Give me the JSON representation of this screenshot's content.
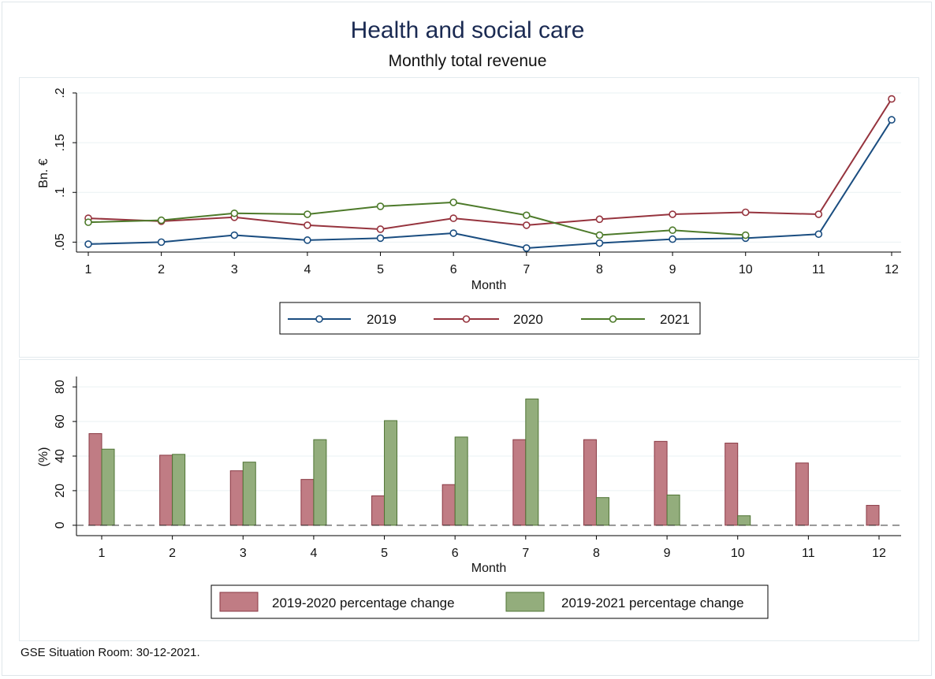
{
  "header": {
    "title": "Health and social care",
    "subtitle": "Monthly total revenue"
  },
  "footer": {
    "note": "GSE Situation Room: 30-12-2021."
  },
  "colors": {
    "s2019": "#1a4d80",
    "s2020": "#96343e",
    "s2021": "#4d7a2a",
    "bar2020": "#c07c84",
    "bar2020_edge": "#8a3a44",
    "bar2021": "#93ad7c",
    "bar2021_edge": "#4f7434",
    "grid": "#eaf0f3"
  },
  "chart_data": [
    {
      "type": "line",
      "xlabel": "Month",
      "ylabel": "Bn. €",
      "x": [
        1,
        2,
        3,
        4,
        5,
        6,
        7,
        8,
        9,
        10,
        11,
        12
      ],
      "x_ticks": [
        "1",
        "2",
        "3",
        "4",
        "5",
        "6",
        "7",
        "8",
        "9",
        "10",
        "11",
        "12"
      ],
      "ylim": [
        0.04,
        0.2
      ],
      "y_ticks": [
        0.05,
        0.1,
        0.15,
        0.2
      ],
      "y_tick_labels": [
        ".05",
        ".1",
        ".15",
        ".2"
      ],
      "grid": true,
      "legend_position": "bottom",
      "series": [
        {
          "name": "2019",
          "values": [
            0.048,
            0.05,
            0.057,
            0.052,
            0.054,
            0.059,
            0.044,
            0.049,
            0.053,
            0.054,
            0.058,
            0.173
          ]
        },
        {
          "name": "2020",
          "values": [
            0.074,
            0.071,
            0.075,
            0.067,
            0.063,
            0.074,
            0.067,
            0.073,
            0.078,
            0.08,
            0.078,
            0.194
          ]
        },
        {
          "name": "2021",
          "values": [
            0.07,
            0.072,
            0.079,
            0.078,
            0.086,
            0.09,
            0.077,
            0.057,
            0.062,
            0.057,
            null,
            null
          ]
        }
      ]
    },
    {
      "type": "bar",
      "xlabel": "Month",
      "ylabel": "(%)",
      "categories": [
        "1",
        "2",
        "3",
        "4",
        "5",
        "6",
        "7",
        "8",
        "9",
        "10",
        "11",
        "12"
      ],
      "ylim": [
        -6,
        86
      ],
      "y_ticks": [
        0,
        20,
        40,
        60,
        80
      ],
      "y_tick_labels": [
        "0",
        "20",
        "40",
        "60",
        "80"
      ],
      "grid": true,
      "zero_line": "dashed",
      "legend_position": "bottom",
      "series": [
        {
          "name": "2019-2020 percentage change",
          "values": [
            53,
            40.5,
            31.5,
            26.5,
            17,
            23.5,
            49.5,
            49.5,
            48.5,
            47.5,
            36,
            11.5
          ]
        },
        {
          "name": "2019-2021 percentage change",
          "values": [
            44,
            41,
            36.5,
            49.5,
            60.5,
            51,
            73,
            16,
            17.5,
            5.5,
            null,
            null
          ]
        }
      ]
    }
  ]
}
